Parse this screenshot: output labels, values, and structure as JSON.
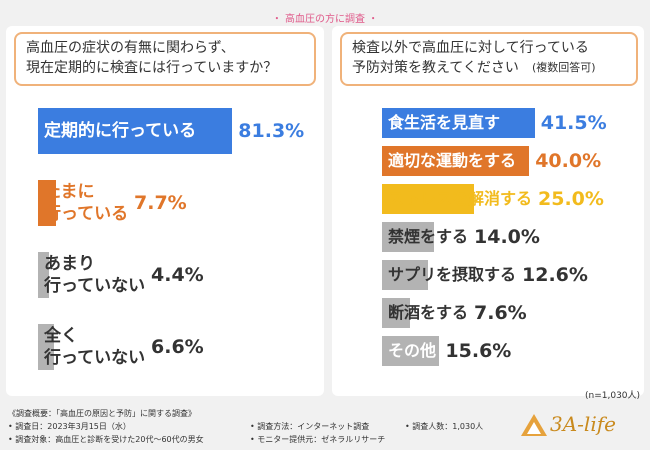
{
  "header": "高血圧の方に調査",
  "chart_data": [
    {
      "type": "bar",
      "orientation": "horizontal",
      "title": "高血圧の症状の有無に関わらず、\n現在定期的に検査には行っていますか？",
      "categories": [
        "定期的に行っている",
        "たまに\n行っている",
        "あまり\n行っていない",
        "全く\n行っていない"
      ],
      "values": [
        81.3,
        7.7,
        4.4,
        6.6
      ],
      "value_labels": [
        "81.3%",
        "7.7%",
        "4.4%",
        "6.6%"
      ],
      "colors": [
        "#3b7de0",
        "#e0762a",
        "#b3b3b3",
        "#b3b3b3"
      ],
      "xlim": [
        0,
        100
      ]
    },
    {
      "type": "bar",
      "orientation": "horizontal",
      "title": "検査以外で高血圧に対して行っている\n予防対策を教えてください",
      "annotation": "(複数回答可)",
      "categories": [
        "食生活を見直す",
        "適切な運動をする",
        "ストレスを解消する",
        "禁煙をする",
        "サプリを摂取する",
        "断酒をする",
        "その他"
      ],
      "values": [
        41.5,
        40.0,
        25.0,
        14.0,
        12.6,
        7.6,
        15.6
      ],
      "value_labels": [
        "41.5%",
        "40.0%",
        "25.0%",
        "14.0%",
        "12.6%",
        "7.6%",
        "15.6%"
      ],
      "colors": [
        "#3b7de0",
        "#e0762a",
        "#f2bb1d",
        "#b3b3b3",
        "#b3b3b3",
        "#b3b3b3",
        "#b3b3b3"
      ],
      "xlim": [
        0,
        50
      ]
    }
  ],
  "sample_note": "(n=1,030人)",
  "survey": {
    "title": "《調査概要：「高血圧の原因と予防」に関する調査》",
    "items": [
      "• 調査日：2023年3月15日（水）",
      "• 調査対象：高血圧と診断を受けた20代〜60代の男女",
      "• 調査方法：インターネット調査",
      "• モニター提供元：ゼネラルリサーチ",
      "• 調査人数：1,030人"
    ]
  },
  "logo": "3A-life"
}
